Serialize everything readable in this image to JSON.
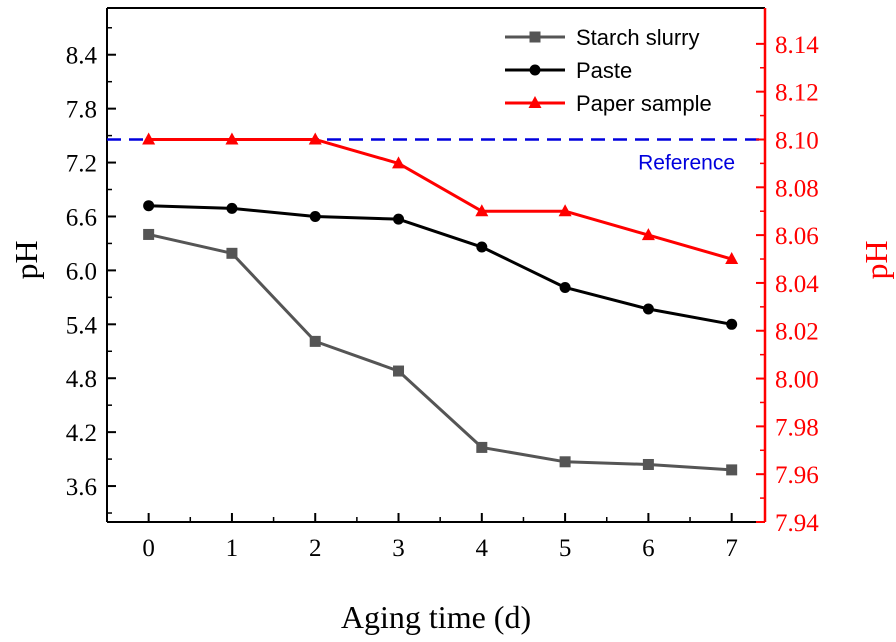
{
  "chart_data": {
    "type": "line",
    "x": [
      0,
      1,
      2,
      3,
      4,
      5,
      6,
      7
    ],
    "xlabel": "Aging time (d)",
    "x_ticks": [
      "0",
      "1",
      "2",
      "3",
      "4",
      "5",
      "6",
      "7"
    ],
    "xlim": [
      -0.5,
      7.4
    ],
    "left_axis": {
      "label": "pH",
      "ylim": [
        3.2,
        8.92
      ],
      "ticks": [
        3.6,
        4.2,
        4.8,
        5.4,
        6.0,
        6.6,
        7.2,
        7.8,
        8.4
      ],
      "tick_labels": [
        "3.6",
        "4.2",
        "4.8",
        "5.4",
        "6.0",
        "6.6",
        "7.2",
        "7.8",
        "8.4"
      ],
      "color": "#000000"
    },
    "right_axis": {
      "label": "pH",
      "ylim": [
        7.94,
        8.155
      ],
      "ticks": [
        7.94,
        7.96,
        7.98,
        8.0,
        8.02,
        8.04,
        8.06,
        8.08,
        8.1,
        8.12,
        8.14
      ],
      "tick_labels": [
        "7.94",
        "7.96",
        "7.98",
        "8.00",
        "8.02",
        "8.04",
        "8.06",
        "8.08",
        "8.10",
        "8.12",
        "8.14"
      ],
      "color": "#ff0000"
    },
    "series": [
      {
        "name": "Starch slurry",
        "axis": "left",
        "marker": "square",
        "color": "#555555",
        "values": [
          6.4,
          6.19,
          5.21,
          4.88,
          4.03,
          3.87,
          3.84,
          3.78
        ]
      },
      {
        "name": "Paste",
        "axis": "left",
        "marker": "circle",
        "color": "#000000",
        "values": [
          6.72,
          6.69,
          6.6,
          6.57,
          6.26,
          5.81,
          5.57,
          5.4
        ]
      },
      {
        "name": "Paper sample",
        "axis": "right",
        "marker": "triangle",
        "color": "#ff0000",
        "values": [
          8.1,
          8.1,
          8.1,
          8.09,
          8.07,
          8.07,
          8.06,
          8.05
        ]
      }
    ],
    "reference": {
      "label": "Reference",
      "axis": "right",
      "value": 8.1,
      "color": "#0000dd",
      "style": "dashed"
    },
    "legend": {
      "position": "top-right",
      "entries": [
        "Starch slurry",
        "Paste",
        "Paper sample"
      ]
    }
  }
}
